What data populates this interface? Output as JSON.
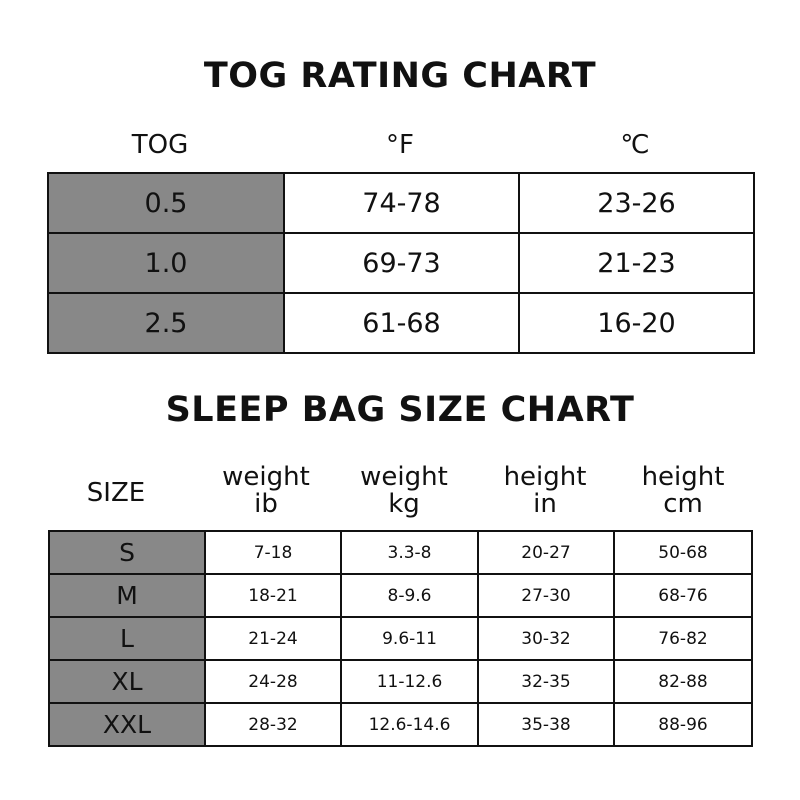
{
  "tog": {
    "title": "TOG RATING CHART",
    "headers": [
      "TOG",
      "°F",
      "℃"
    ],
    "rows": [
      [
        "0.5",
        "74-78",
        "23-26"
      ],
      [
        "1.0",
        "69-73",
        "21-23"
      ],
      [
        "2.5",
        "61-68",
        "16-20"
      ]
    ]
  },
  "size": {
    "title": "SLEEP BAG SIZE CHART",
    "headers": [
      {
        "line1": "SIZE",
        "line2": ""
      },
      {
        "line1": "weight",
        "line2": "ib"
      },
      {
        "line1": "weight",
        "line2": "kg"
      },
      {
        "line1": "height",
        "line2": "in"
      },
      {
        "line1": "height",
        "line2": "cm"
      }
    ],
    "rows": [
      [
        "S",
        "7-18",
        "3.3-8",
        "20-27",
        "50-68"
      ],
      [
        "M",
        "18-21",
        "8-9.6",
        "27-30",
        "68-76"
      ],
      [
        "L",
        "21-24",
        "9.6-11",
        "30-32",
        "76-82"
      ],
      [
        "XL",
        "24-28",
        "11-12.6",
        "32-35",
        "82-88"
      ],
      [
        "XXL",
        "28-32",
        "12.6-14.6",
        "35-38",
        "88-96"
      ]
    ]
  },
  "colors": {
    "key_cell": "#888888",
    "border": "#111111"
  }
}
